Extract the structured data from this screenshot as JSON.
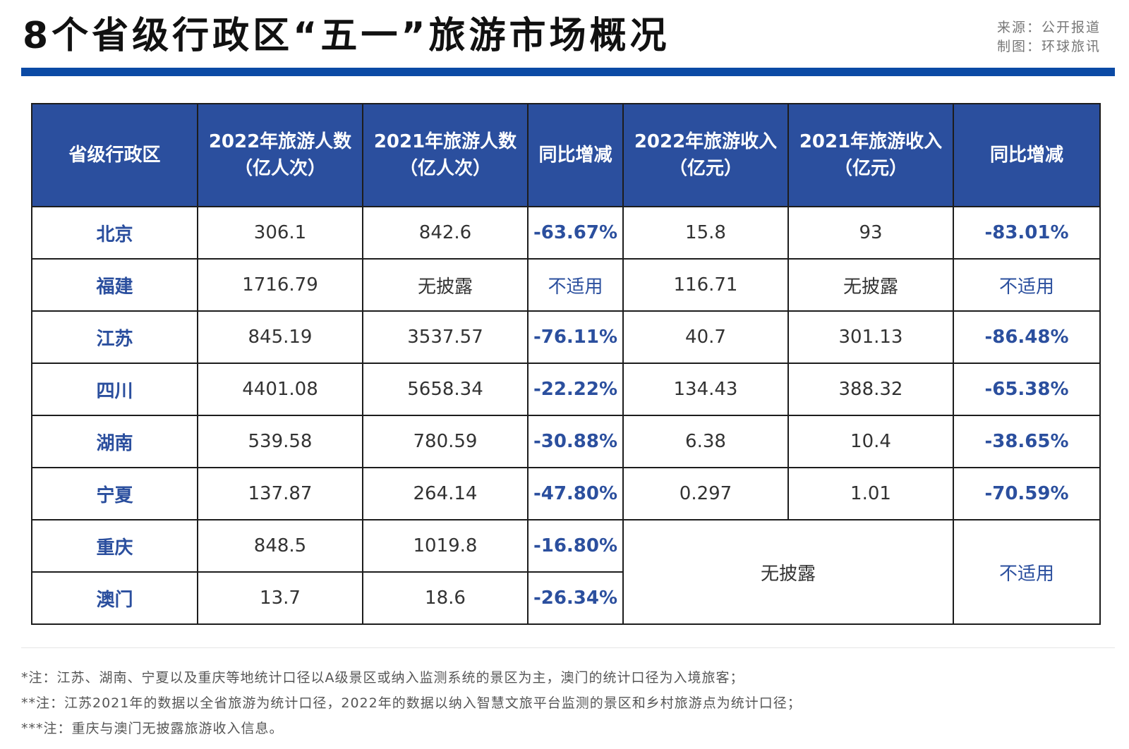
{
  "title": "8个省级行政区“五一”旅游市场概况",
  "source": {
    "line1": "来源：公开报道",
    "line2": "制图：环球旅讯"
  },
  "table": {
    "headers": [
      {
        "line1": "省级行政区",
        "line2": ""
      },
      {
        "line1": "2022年旅游人数",
        "line2": "（亿人次）"
      },
      {
        "line1": "2021年旅游人数",
        "line2": "（亿人次）"
      },
      {
        "line1": "同比增减",
        "line2": ""
      },
      {
        "line1": "2022年旅游收入",
        "line2": "（亿元）"
      },
      {
        "line1": "2021年旅游收入",
        "line2": "（亿元）"
      },
      {
        "line1": "同比增减",
        "line2": ""
      }
    ],
    "rows": [
      [
        "北京",
        "306.1",
        "842.6",
        "-63.67%",
        "15.8",
        "93",
        "-83.01%"
      ],
      [
        "福建",
        "1716.79",
        "无披露",
        "不适用",
        "116.71",
        "无披露",
        "不适用"
      ],
      [
        "江苏",
        "845.19",
        "3537.57",
        "-76.11%",
        "40.7",
        "301.13",
        "-86.48%"
      ],
      [
        "四川",
        "4401.08",
        "5658.34",
        "-22.22%",
        "134.43",
        "388.32",
        "-65.38%"
      ],
      [
        "湖南",
        "539.58",
        "780.59",
        "-30.88%",
        "6.38",
        "10.4",
        "-38.65%"
      ],
      [
        "宁夏",
        "137.87",
        "264.14",
        "-47.80%",
        "0.297",
        "1.01",
        "-70.59%"
      ],
      [
        "重庆",
        "848.5",
        "1019.8",
        "-16.80%"
      ],
      [
        "澳门",
        "13.7",
        "18.6",
        "-26.34%"
      ]
    ],
    "merged_income": "无披露",
    "merged_change": "不适用"
  },
  "notes": [
    "*注：江苏、湖南、宁夏以及重庆等地统计口径以A级景区或纳入监测系统的景区为主，澳门的统计口径为入境旅客；",
    "**注：江苏2021年的数据以全省旅游为统计口径，2022年的数据以纳入智慧文旅平台监测的景区和乡村旅游点为统计口径；",
    "***注：重庆与澳门无披露旅游收入信息。"
  ],
  "colors": {
    "accent_blue": "#2b4f9e",
    "bar_blue": "#0b4aa5"
  }
}
